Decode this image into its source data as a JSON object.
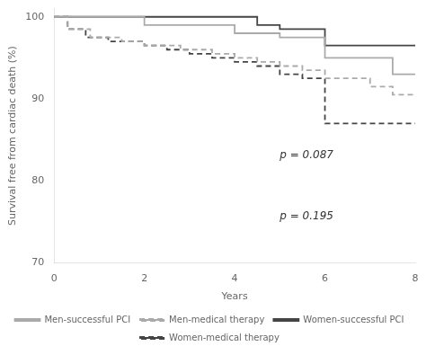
{
  "chart_data": {
    "type": "line",
    "x_label": "Years",
    "y_label": "Survival free from cardiac death (%)",
    "xlim": [
      0,
      8
    ],
    "xticks": [
      0,
      2,
      4,
      6,
      8
    ],
    "ylim": [
      70,
      101
    ],
    "yticks": [
      70,
      80,
      90,
      100
    ],
    "grid": false,
    "legend": "bottom",
    "annotations": [
      {
        "text": "p = 0.087",
        "x": 5.0,
        "y": 82.5
      },
      {
        "text": "p = 0.195",
        "x": 5.0,
        "y": 75.0
      }
    ],
    "series": [
      {
        "name": "Men-successful PCI",
        "color": "#aaaaaa",
        "line_style": "solid",
        "x": [
          0,
          2.0,
          2.0,
          4.0,
          4.0,
          5.0,
          5.0,
          6.0,
          6.0,
          7.5,
          7.5,
          8.0
        ],
        "values": [
          100,
          100,
          99.0,
          99.0,
          98.0,
          98.0,
          97.5,
          97.5,
          95.0,
          95.0,
          93.0,
          93.0
        ]
      },
      {
        "name": "Men-medical therapy",
        "color": "#aaaaaa",
        "line_style": "dashed",
        "x": [
          0,
          0.3,
          0.3,
          0.8,
          0.8,
          1.5,
          1.5,
          2.0,
          2.0,
          2.8,
          2.8,
          3.5,
          3.5,
          4.0,
          4.0,
          4.5,
          4.5,
          5.0,
          5.0,
          5.5,
          5.5,
          6.0,
          6.0,
          7.0,
          7.0,
          7.5,
          7.5,
          8.0
        ],
        "values": [
          100,
          100,
          98.5,
          98.5,
          97.5,
          97.5,
          97.0,
          97.0,
          96.5,
          96.5,
          96.0,
          96.0,
          95.5,
          95.5,
          95.0,
          95.0,
          94.5,
          94.5,
          94.0,
          94.0,
          93.5,
          93.5,
          92.5,
          92.5,
          91.5,
          91.5,
          90.5,
          90.5
        ]
      },
      {
        "name": "Women-successful PCI",
        "color": "#444444",
        "line_style": "solid",
        "x": [
          0,
          4.5,
          4.5,
          5.0,
          5.0,
          6.0,
          6.0,
          8.0
        ],
        "values": [
          100,
          100,
          99.0,
          99.0,
          98.5,
          98.5,
          96.5,
          96.5
        ]
      },
      {
        "name": "Women-medical therapy",
        "color": "#444444",
        "line_style": "dashed",
        "x": [
          0,
          0.3,
          0.3,
          0.7,
          0.7,
          1.2,
          1.2,
          2.0,
          2.0,
          2.5,
          2.5,
          3.0,
          3.0,
          3.5,
          3.5,
          4.0,
          4.0,
          4.5,
          4.5,
          5.0,
          5.0,
          5.5,
          5.5,
          6.0,
          6.0,
          8.0
        ],
        "values": [
          100,
          100,
          98.5,
          98.5,
          97.5,
          97.5,
          97.0,
          97.0,
          96.5,
          96.5,
          96.0,
          96.0,
          95.5,
          95.5,
          95.0,
          95.0,
          94.5,
          94.5,
          94.0,
          94.0,
          93.0,
          93.0,
          92.5,
          92.5,
          87.0,
          87.0
        ]
      }
    ]
  }
}
